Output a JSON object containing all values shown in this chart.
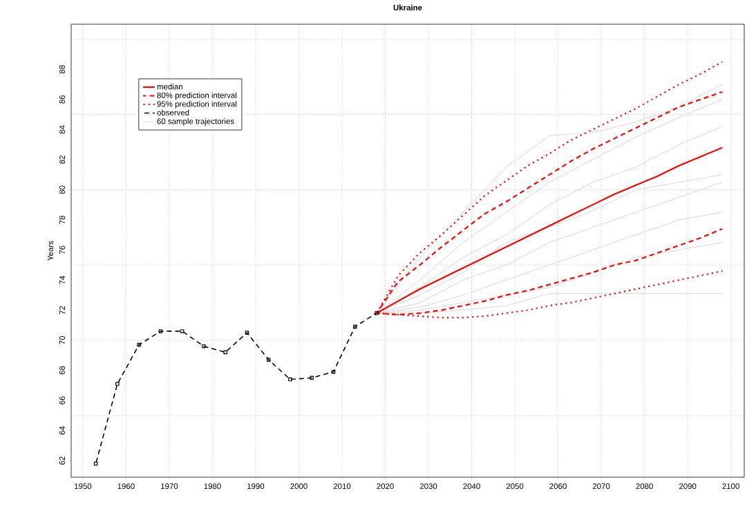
{
  "chart_data": {
    "type": "line",
    "title": "Ukraine",
    "ylabel": "Years",
    "xlim": [
      1947.3,
      2103.1
    ],
    "ylim": [
      60.9,
      91.0
    ],
    "xticks": [
      1950,
      1960,
      1970,
      1980,
      1990,
      2000,
      2010,
      2020,
      2030,
      2040,
      2050,
      2060,
      2070,
      2080,
      2090,
      2100
    ],
    "yticks": [
      62,
      64,
      66,
      68,
      70,
      72,
      74,
      76,
      78,
      80,
      82,
      84,
      86,
      88
    ],
    "grid": true,
    "legend": "top left",
    "series": [
      {
        "name": "median",
        "color": "#ff0000",
        "line_style": "solid",
        "x": [
          2018,
          2023,
          2028,
          2033,
          2038,
          2043,
          2048,
          2053,
          2058,
          2063,
          2068,
          2073,
          2078,
          2083,
          2088,
          2093,
          2098
        ],
        "values": [
          71.8,
          72.6,
          73.4,
          74.1,
          74.8,
          75.5,
          76.2,
          76.9,
          77.6,
          78.3,
          79.0,
          79.7,
          80.3,
          80.9,
          81.6,
          82.2,
          82.8
        ]
      },
      {
        "name": "80% prediction interval",
        "color": "#ff0000",
        "line_style": "dashed",
        "x": [
          2018,
          2023,
          2028,
          2033,
          2038,
          2043,
          2048,
          2053,
          2058,
          2063,
          2068,
          2073,
          2078,
          2083,
          2088,
          2093,
          2098
        ],
        "values": [
          71.8,
          73.9,
          75.0,
          76.2,
          77.3,
          78.4,
          79.2,
          80.1,
          81.0,
          81.9,
          82.7,
          83.4,
          84.1,
          84.8,
          85.5,
          86.0,
          86.5
        ]
      },
      {
        "color": "#ff0000",
        "line_style": "dashed",
        "x": [
          2018,
          2023,
          2028,
          2033,
          2038,
          2043,
          2048,
          2053,
          2058,
          2063,
          2068,
          2073,
          2078,
          2083,
          2088,
          2093,
          2098
        ],
        "values": [
          71.8,
          71.7,
          71.8,
          72.0,
          72.3,
          72.6,
          73.0,
          73.3,
          73.7,
          74.1,
          74.5,
          75.0,
          75.3,
          75.8,
          76.3,
          76.8,
          77.4
        ]
      },
      {
        "name": "95% prediction interval",
        "color": "#ff0000",
        "line_style": "dotted",
        "x": [
          2018,
          2023,
          2028,
          2033,
          2038,
          2043,
          2048,
          2053,
          2058,
          2063,
          2068,
          2073,
          2078,
          2083,
          2088,
          2093,
          2098
        ],
        "values": [
          71.8,
          74.3,
          75.8,
          77.0,
          78.3,
          79.6,
          80.6,
          81.6,
          82.4,
          83.3,
          84.0,
          84.7,
          85.4,
          86.2,
          87.0,
          87.7,
          88.5
        ]
      },
      {
        "color": "#ff0000",
        "line_style": "dotted",
        "x": [
          2018,
          2023,
          2028,
          2033,
          2038,
          2043,
          2048,
          2053,
          2058,
          2063,
          2068,
          2073,
          2078,
          2083,
          2088,
          2093,
          2098
        ],
        "values": [
          71.8,
          71.7,
          71.6,
          71.5,
          71.5,
          71.6,
          71.8,
          72.0,
          72.3,
          72.5,
          72.8,
          73.1,
          73.4,
          73.7,
          74.0,
          74.3,
          74.6
        ]
      },
      {
        "name": "observed",
        "color": "#000000",
        "line_style": "dashed",
        "marker": "square",
        "x": [
          1953,
          1958,
          1963,
          1968,
          1973,
          1978,
          1983,
          1988,
          1993,
          1998,
          2003,
          2008,
          2013,
          2018
        ],
        "values": [
          61.8,
          67.1,
          69.7,
          70.6,
          70.6,
          69.6,
          69.2,
          70.5,
          68.7,
          67.4,
          67.5,
          67.9,
          70.9,
          71.8
        ]
      },
      {
        "name": "60 sample trajectories",
        "color": "#bebebe",
        "line_style": "solid",
        "x": [
          2018,
          2028,
          2038,
          2048,
          2058,
          2068,
          2078,
          2088,
          2098
        ],
        "values": [
          71.8,
          75.5,
          78.5,
          81.5,
          83.6,
          83.8,
          84.5,
          85.5,
          87.0
        ]
      },
      {
        "color": "#bebebe",
        "line_style": "solid",
        "x": [
          2018,
          2028,
          2038,
          2048,
          2058,
          2068,
          2078,
          2088,
          2098
        ],
        "values": [
          71.8,
          74.0,
          76.5,
          78.5,
          80.5,
          82.0,
          83.5,
          84.8,
          86.0
        ]
      },
      {
        "color": "#bebebe",
        "line_style": "solid",
        "x": [
          2018,
          2028,
          2038,
          2048,
          2058,
          2068,
          2078,
          2088,
          2098
        ],
        "values": [
          71.8,
          73.5,
          75.5,
          77.0,
          79.0,
          80.5,
          81.5,
          83.0,
          84.2
        ]
      },
      {
        "color": "#bebebe",
        "line_style": "solid",
        "x": [
          2018,
          2028,
          2038,
          2048,
          2058,
          2068,
          2078,
          2088,
          2098
        ],
        "values": [
          71.8,
          73.0,
          74.5,
          76.5,
          77.5,
          78.6,
          80.0,
          80.5,
          81.0
        ]
      },
      {
        "color": "#bebebe",
        "line_style": "solid",
        "x": [
          2018,
          2028,
          2038,
          2048,
          2058,
          2068,
          2078,
          2088,
          2098
        ],
        "values": [
          71.8,
          72.5,
          74.0,
          75.0,
          76.5,
          77.5,
          78.5,
          79.5,
          80.5
        ]
      },
      {
        "color": "#bebebe",
        "line_style": "solid",
        "x": [
          2018,
          2028,
          2038,
          2048,
          2058,
          2068,
          2078,
          2088,
          2098
        ],
        "values": [
          71.8,
          72.2,
          73.0,
          74.0,
          75.0,
          76.0,
          77.0,
          78.0,
          78.5
        ]
      },
      {
        "color": "#bebebe",
        "line_style": "solid",
        "x": [
          2018,
          2028,
          2038,
          2048,
          2058,
          2068,
          2078,
          2088,
          2098
        ],
        "values": [
          71.8,
          72.0,
          72.5,
          73.0,
          73.5,
          74.5,
          75.5,
          76.0,
          76.5
        ]
      },
      {
        "color": "#bebebe",
        "line_style": "solid",
        "x": [
          2018,
          2028,
          2038,
          2048,
          2058,
          2068,
          2078,
          2088,
          2098
        ],
        "values": [
          71.8,
          71.8,
          72.0,
          72.3,
          73.1,
          73.1,
          73.1,
          73.1,
          73.1
        ]
      }
    ]
  }
}
